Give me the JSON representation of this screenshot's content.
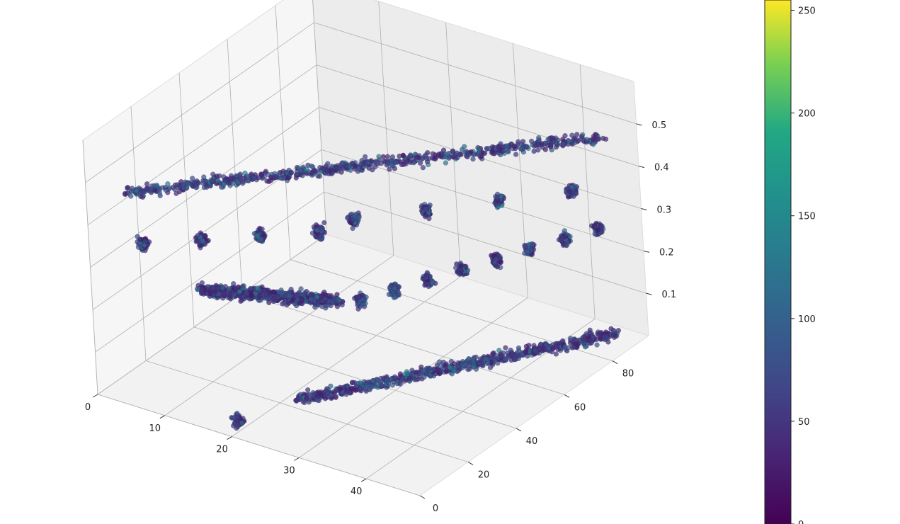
{
  "chart_data": {
    "type": "scatter",
    "projection": "3d",
    "grid": true,
    "x_ticks": [
      "0",
      "10",
      "20",
      "30",
      "40"
    ],
    "y_ticks": [
      "0",
      "20",
      "40",
      "60",
      "80"
    ],
    "z_ticks": [
      "0.1",
      "0.2",
      "0.3",
      "0.4",
      "0.5"
    ],
    "xlim": [
      0,
      48
    ],
    "ylim": [
      0,
      95
    ],
    "zlim": [
      0,
      0.6
    ],
    "colormap": "viridis",
    "color_range": [
      0,
      255
    ],
    "colorbar_ticks": [
      "0",
      "50",
      "100",
      "150",
      "200",
      "250"
    ],
    "colors": {
      "pane_floor": "#f2f2f2",
      "pane_left": "#f6f6f6",
      "pane_back": "#ececec",
      "grid": "#b0b0b0"
    },
    "clusters": [
      {
        "shape": "ridge",
        "x": [
          3,
          44
        ],
        "y": [
          8,
          92
        ],
        "z": 0.46
      },
      {
        "shape": "ridge",
        "x": [
          12,
          28
        ],
        "y": [
          12,
          25
        ],
        "z": 0.26
      },
      {
        "shape": "blobs",
        "x": [
          30,
          44
        ],
        "y": [
          28,
          88
        ],
        "z": 0.26,
        "count": 8
      },
      {
        "shape": "blobs",
        "x": [
          6,
          22
        ],
        "y": [
          6,
          34
        ],
        "z": 0.36,
        "count": 4
      },
      {
        "shape": "blobs",
        "x": [
          26,
          44
        ],
        "y": [
          38,
          78
        ],
        "z": 0.39,
        "count": 4
      },
      {
        "shape": "ridge",
        "x": [
          22,
          45
        ],
        "y": [
          22,
          90
        ],
        "z": 0.01
      },
      {
        "shape": "blob",
        "x": [
          19,
          20
        ],
        "y": [
          3,
          5
        ],
        "z": 0.02
      }
    ]
  }
}
